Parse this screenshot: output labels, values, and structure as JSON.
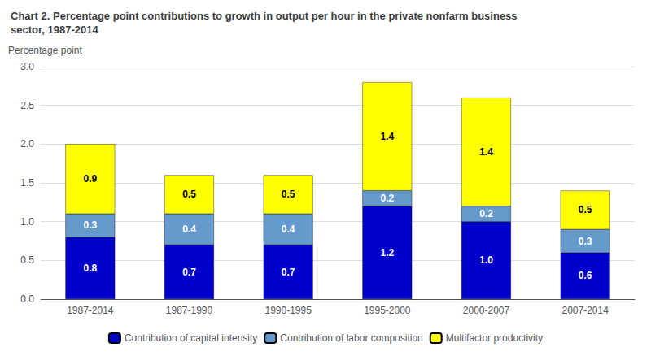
{
  "chart_data": {
    "type": "bar",
    "title": "Chart 2. Percentage point contributions to growth in output per hour in the private nonfarm business\nsector, 1987-2014",
    "ylabel": "Percentage point",
    "categories": [
      "1987-2014",
      "1987-1990",
      "1990-1995",
      "1995-2000",
      "2000-2007",
      "2007-2014"
    ],
    "series": [
      {
        "name": "Contribution of capital intensity",
        "color": "#0000cc",
        "values": [
          0.8,
          0.7,
          0.7,
          1.2,
          1.0,
          0.6
        ],
        "value_labels": [
          "0.8",
          "0.7",
          "0.7",
          "1.2",
          "1.0",
          "0.6"
        ]
      },
      {
        "name": "Contribution of labor composition",
        "color": "#6699cc",
        "values": [
          0.3,
          0.4,
          0.4,
          0.2,
          0.2,
          0.3
        ]
      },
      {
        "name": "Multifactor productivity",
        "color": "#ffff00",
        "values": [
          0.9,
          0.5,
          0.5,
          1.4,
          1.4,
          0.5
        ]
      }
    ],
    "stacked": true,
    "data_labels": true,
    "ylim": [
      0,
      3.0
    ],
    "yticks": [
      {
        "value": 0,
        "label": "0.0"
      },
      {
        "value": 0.5,
        "label": "0.5"
      },
      {
        "value": 1,
        "label": "1.0"
      },
      {
        "value": 1.5,
        "label": "1.5"
      },
      {
        "value": 2,
        "label": "2.0"
      },
      {
        "value": 2.5,
        "label": "2.5"
      },
      {
        "value": 3,
        "label": "3.0"
      }
    ],
    "grid": true,
    "legend": "bottom"
  }
}
